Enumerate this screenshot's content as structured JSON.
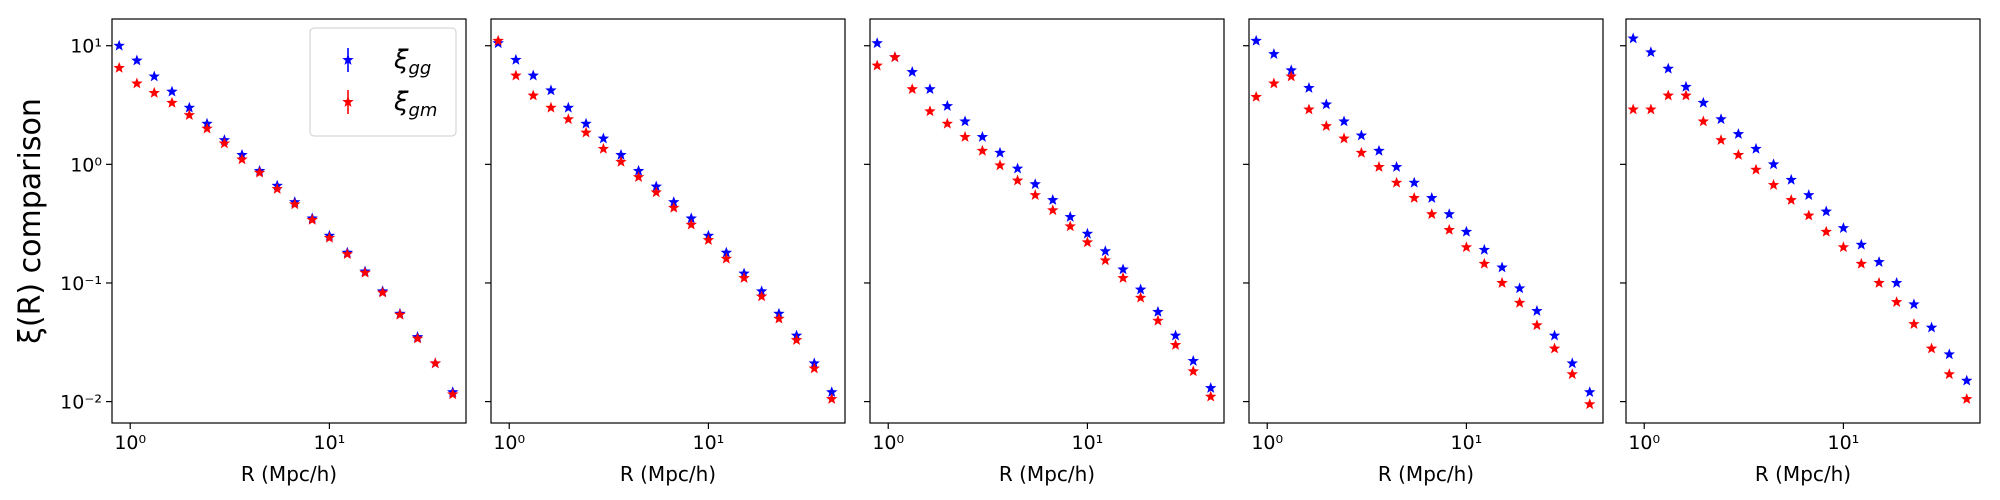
{
  "chart_data": [
    {
      "type": "scatter",
      "xlabel": "R  (Mpc/h)",
      "ylabel": "ξ(R) comparison",
      "xscale": "log",
      "yscale": "log",
      "legend": "upper right",
      "xlim": [
        0.81,
        48.5
      ],
      "ylim": [
        0.0066,
        16.8
      ],
      "xticks": [
        {
          "value": 1,
          "label": "10⁰"
        },
        {
          "value": 10,
          "label": "10¹"
        }
      ],
      "yticks": [
        {
          "value": 0.01,
          "label": "10⁻²"
        },
        {
          "value": 0.1,
          "label": "10⁻¹"
        },
        {
          "value": 1,
          "label": "10⁰"
        },
        {
          "value": 10,
          "label": "10¹"
        }
      ],
      "x": [
        0.88,
        1.08,
        1.32,
        1.62,
        1.98,
        2.43,
        2.97,
        3.64,
        4.46,
        5.47,
        6.7,
        8.2,
        10.0,
        12.3,
        15.1,
        18.5,
        22.6,
        27.7,
        34.0,
        41.6
      ],
      "series": [
        {
          "name": "ξgg",
          "color": "#0000ff",
          "values": [
            10,
            7.5,
            5.5,
            4.1,
            3.0,
            2.2,
            1.6,
            1.2,
            0.88,
            0.66,
            0.48,
            0.35,
            0.25,
            0.18,
            0.125,
            0.085,
            0.055,
            0.035,
            0.021,
            0.012
          ]
        },
        {
          "name": "ξgm",
          "color": "#ff0000",
          "values": [
            6.5,
            4.8,
            4.0,
            3.3,
            2.6,
            2.0,
            1.5,
            1.1,
            0.85,
            0.62,
            0.46,
            0.34,
            0.24,
            0.175,
            0.122,
            0.083,
            0.054,
            0.034,
            0.021,
            0.0115
          ]
        }
      ]
    },
    {
      "type": "scatter",
      "xlabel": "R  (Mpc/h)",
      "xscale": "log",
      "yscale": "log",
      "ytick_labels": false,
      "xlim": [
        0.81,
        48.5
      ],
      "ylim": [
        0.0066,
        16.8
      ],
      "xticks": [
        {
          "value": 1,
          "label": "10⁰"
        },
        {
          "value": 10,
          "label": "10¹"
        }
      ],
      "yticks": [
        0.01,
        0.1,
        1,
        10
      ],
      "x": [
        0.88,
        1.08,
        1.32,
        1.62,
        1.98,
        2.43,
        2.97,
        3.64,
        4.46,
        5.47,
        6.7,
        8.2,
        10.0,
        12.3,
        15.1,
        18.5,
        22.6,
        27.7,
        34.0,
        41.6
      ],
      "series": [
        {
          "color": "#0000ff",
          "values": [
            10.5,
            7.6,
            5.6,
            4.2,
            3.0,
            2.2,
            1.65,
            1.2,
            0.88,
            0.65,
            0.48,
            0.35,
            0.25,
            0.18,
            0.12,
            0.085,
            0.055,
            0.036,
            0.021,
            0.012
          ]
        },
        {
          "color": "#ff0000",
          "values": [
            11,
            5.6,
            3.8,
            3.0,
            2.4,
            1.85,
            1.35,
            1.05,
            0.78,
            0.58,
            0.43,
            0.31,
            0.23,
            0.16,
            0.11,
            0.077,
            0.05,
            0.033,
            0.019,
            0.0105
          ]
        }
      ]
    },
    {
      "type": "scatter",
      "xlabel": "R  (Mpc/h)",
      "xscale": "log",
      "yscale": "log",
      "ytick_labels": false,
      "xlim": [
        0.81,
        48.5
      ],
      "ylim": [
        0.0066,
        16.8
      ],
      "xticks": [
        {
          "value": 1,
          "label": "10⁰"
        },
        {
          "value": 10,
          "label": "10¹"
        }
      ],
      "yticks": [
        0.01,
        0.1,
        1,
        10
      ],
      "x": [
        0.88,
        1.08,
        1.32,
        1.62,
        1.98,
        2.43,
        2.97,
        3.64,
        4.46,
        5.47,
        6.7,
        8.2,
        10.0,
        12.3,
        15.1,
        18.5,
        22.6,
        27.7,
        34.0,
        41.6
      ],
      "series": [
        {
          "color": "#0000ff",
          "values": [
            10.5,
            8.0,
            6.0,
            4.3,
            3.1,
            2.3,
            1.7,
            1.25,
            0.92,
            0.68,
            0.5,
            0.36,
            0.26,
            0.185,
            0.13,
            0.088,
            0.057,
            0.036,
            0.022,
            0.013
          ]
        },
        {
          "color": "#ff0000",
          "values": [
            6.8,
            8.0,
            4.3,
            2.8,
            2.2,
            1.7,
            1.3,
            0.98,
            0.73,
            0.55,
            0.41,
            0.3,
            0.22,
            0.155,
            0.11,
            0.075,
            0.048,
            0.03,
            0.018,
            0.011
          ]
        }
      ]
    },
    {
      "type": "scatter",
      "xlabel": "R  (Mpc/h)",
      "xscale": "log",
      "yscale": "log",
      "ytick_labels": false,
      "xlim": [
        0.81,
        48.5
      ],
      "ylim": [
        0.0066,
        16.8
      ],
      "xticks": [
        {
          "value": 1,
          "label": "10⁰"
        },
        {
          "value": 10,
          "label": "10¹"
        }
      ],
      "yticks": [
        0.01,
        0.1,
        1,
        10
      ],
      "x": [
        0.88,
        1.08,
        1.32,
        1.62,
        1.98,
        2.43,
        2.97,
        3.64,
        4.46,
        5.47,
        6.7,
        8.2,
        10.0,
        12.3,
        15.1,
        18.5,
        22.6,
        27.7,
        34.0,
        41.6
      ],
      "series": [
        {
          "color": "#0000ff",
          "values": [
            11,
            8.5,
            6.2,
            4.4,
            3.2,
            2.3,
            1.75,
            1.3,
            0.95,
            0.7,
            0.52,
            0.38,
            0.27,
            0.19,
            0.135,
            0.09,
            0.058,
            0.036,
            0.021,
            0.012
          ]
        },
        {
          "color": "#ff0000",
          "values": [
            3.7,
            4.8,
            5.5,
            2.9,
            2.1,
            1.65,
            1.25,
            0.95,
            0.7,
            0.52,
            0.38,
            0.28,
            0.2,
            0.145,
            0.1,
            0.068,
            0.044,
            0.028,
            0.017,
            0.0095
          ]
        }
      ]
    },
    {
      "type": "scatter",
      "xlabel": "R  (Mpc/h)",
      "xscale": "log",
      "yscale": "log",
      "ytick_labels": false,
      "xlim": [
        0.81,
        48.5
      ],
      "ylim": [
        0.0066,
        16.8
      ],
      "xticks": [
        {
          "value": 1,
          "label": "10⁰"
        },
        {
          "value": 10,
          "label": "10¹"
        }
      ],
      "yticks": [
        0.01,
        0.1,
        1,
        10
      ],
      "x": [
        0.88,
        1.08,
        1.32,
        1.62,
        1.98,
        2.43,
        2.97,
        3.64,
        4.46,
        5.47,
        6.7,
        8.2,
        10.0,
        12.3,
        15.1,
        18.5,
        22.6,
        27.7,
        34.0,
        41.6
      ],
      "series": [
        {
          "color": "#0000ff",
          "values": [
            11.5,
            8.8,
            6.4,
            4.5,
            3.3,
            2.4,
            1.8,
            1.35,
            1.0,
            0.74,
            0.55,
            0.4,
            0.29,
            0.21,
            0.15,
            0.1,
            0.066,
            0.042,
            0.025,
            0.015
          ]
        },
        {
          "color": "#ff0000",
          "values": [
            2.9,
            2.9,
            3.8,
            3.8,
            2.3,
            1.6,
            1.2,
            0.9,
            0.67,
            0.5,
            0.37,
            0.27,
            0.2,
            0.145,
            0.1,
            0.069,
            0.045,
            0.028,
            0.017,
            0.0105
          ]
        }
      ]
    }
  ]
}
